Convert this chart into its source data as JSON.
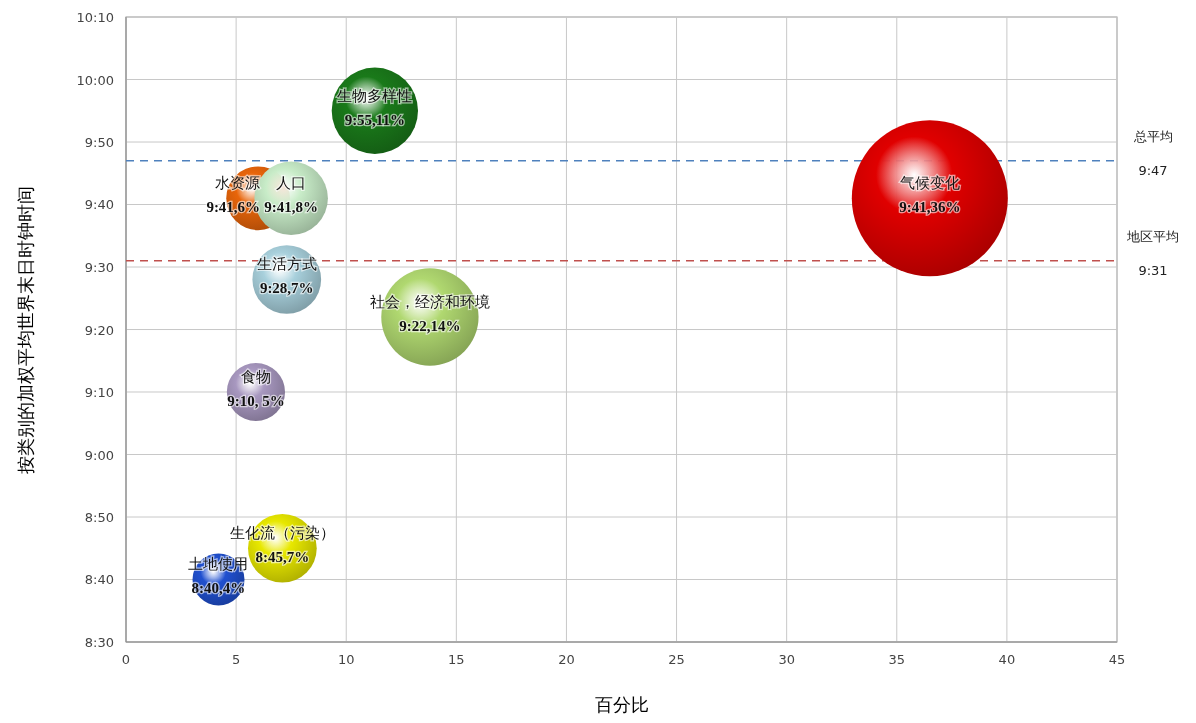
{
  "chart_data": {
    "type": "bubble",
    "xlabel": "百分比",
    "ylabel": "按类别的加权平均世界末日时钟时间",
    "xlim": [
      0,
      45
    ],
    "xticks": [
      0,
      5,
      10,
      15,
      20,
      25,
      30,
      35,
      40,
      45
    ],
    "ylim": [
      8.5,
      10.1667
    ],
    "yticks": [
      {
        "value": 8.5,
        "label": "8:30"
      },
      {
        "value": 8.6667,
        "label": "8:40"
      },
      {
        "value": 8.8333,
        "label": "8:50"
      },
      {
        "value": 9,
        "label": "9:00"
      },
      {
        "value": 9.1667,
        "label": "9:10"
      },
      {
        "value": 9.3333,
        "label": "9:20"
      },
      {
        "value": 9.5,
        "label": "9:30"
      },
      {
        "value": 9.6667,
        "label": "9:40"
      },
      {
        "value": 9.8333,
        "label": "9:50"
      },
      {
        "value": 10,
        "label": "10:00"
      },
      {
        "value": 10.1667,
        "label": "10:10"
      }
    ],
    "grid": true,
    "ref_lines": [
      {
        "axis": "y",
        "value": 9.7833,
        "label": "总平均",
        "color": "#4f81bd",
        "line_style": "dashed"
      },
      {
        "axis": "y",
        "value": 9.5167,
        "label": "地区平均",
        "color": "#c0504d",
        "line_style": "dashed"
      }
    ],
    "annotations": [
      "9:47",
      "9:31"
    ],
    "series": [
      {
        "name": "气候变化",
        "color": "#e00000",
        "x": [
          36.5
        ],
        "values": [
          9.6833
        ],
        "sizes": [
          1
        ],
        "value_labels": [
          "9:41,36%"
        ]
      },
      {
        "name": "生物多样性",
        "color": "#1a7a1a",
        "x": [
          11.3
        ],
        "values": [
          9.9167
        ],
        "sizes": [
          0.306
        ],
        "value_labels": [
          "9:55,11%"
        ]
      },
      {
        "name": "水资源",
        "color": "#e8650a",
        "x": [
          6
        ],
        "values": [
          9.6833
        ],
        "sizes": [
          0.167
        ],
        "value_labels": [
          "9:41,6%"
        ]
      },
      {
        "name": "人口",
        "color": "#c8ecc8",
        "x": [
          7.5
        ],
        "values": [
          9.6833
        ],
        "sizes": [
          0.222
        ],
        "value_labels": [
          "9:41,8%"
        ]
      },
      {
        "name": "生活方式",
        "color": "#a8d0dc",
        "x": [
          7.3
        ],
        "values": [
          9.4667
        ],
        "sizes": [
          0.194
        ],
        "value_labels": [
          "9:28,7%"
        ]
      },
      {
        "name": "社会，经济和环境",
        "color": "#b0d870",
        "x": [
          13.8
        ],
        "values": [
          9.3667
        ],
        "sizes": [
          0.389
        ],
        "value_labels": [
          "9:22,14%"
        ]
      },
      {
        "name": "食物",
        "color": "#a898c0",
        "x": [
          5.9
        ],
        "values": [
          9.1667
        ],
        "sizes": [
          0.139
        ],
        "value_labels": [
          "9:10, 5%"
        ]
      },
      {
        "name": "生化流（污染）",
        "color": "#e8e800",
        "x": [
          7.1
        ],
        "values": [
          8.75
        ],
        "sizes": [
          0.194
        ],
        "value_labels": [
          "8:45,7%"
        ]
      },
      {
        "name": "土地使用",
        "color": "#2050d0",
        "x": [
          4.2
        ],
        "values": [
          8.6667
        ],
        "sizes": [
          0.111
        ],
        "value_labels": [
          "8:40,4%"
        ]
      }
    ]
  }
}
